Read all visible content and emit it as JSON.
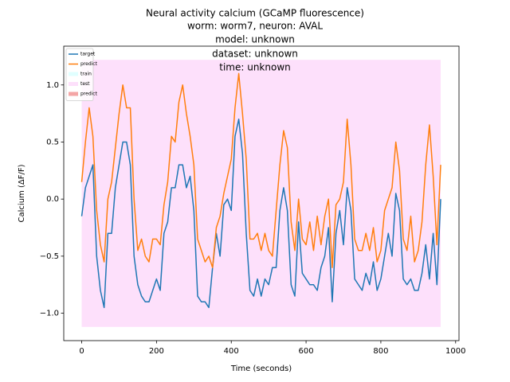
{
  "chart_data": {
    "type": "line",
    "title": [
      "Neural activity calcium (GCaMP fluorescence)",
      "worm: worm7, neuron: AVAL",
      "model: unknown",
      "dataset: unknown",
      "time: unknown"
    ],
    "xlabel": "Time (seconds)",
    "ylabel": "Calcium (ΔF/F)",
    "xlim": [
      -48,
      1009
    ],
    "ylim": [
      -1.24,
      1.34
    ],
    "xticks": [
      0,
      200,
      400,
      600,
      800,
      1000
    ],
    "yticks": [
      {
        "value": -1.0,
        "label": "−1.0"
      },
      {
        "value": -0.5,
        "label": "−0.5"
      },
      {
        "value": 0.0,
        "label": "0.0"
      },
      {
        "value": 0.5,
        "label": "0.5"
      },
      {
        "value": 1.0,
        "label": "1.0"
      }
    ],
    "legend": "upper left",
    "x": [
      0,
      10,
      20,
      30,
      40,
      50,
      60,
      70,
      80,
      90,
      100,
      110,
      120,
      130,
      140,
      150,
      160,
      170,
      180,
      190,
      200,
      210,
      220,
      230,
      240,
      250,
      260,
      270,
      280,
      290,
      300,
      310,
      320,
      330,
      340,
      350,
      360,
      370,
      380,
      390,
      400,
      410,
      420,
      430,
      440,
      450,
      460,
      470,
      480,
      490,
      500,
      510,
      520,
      530,
      540,
      550,
      560,
      570,
      580,
      590,
      600,
      610,
      620,
      630,
      640,
      650,
      660,
      670,
      680,
      690,
      700,
      710,
      720,
      730,
      740,
      750,
      760,
      770,
      780,
      790,
      800,
      810,
      820,
      830,
      840,
      850,
      860,
      870,
      880,
      890,
      900,
      910,
      920,
      930,
      940,
      950,
      960
    ],
    "series": [
      {
        "name": "target",
        "color": "#1f77b4",
        "values": [
          -0.15,
          0.1,
          0.2,
          0.3,
          -0.5,
          -0.8,
          -0.95,
          -0.3,
          -0.3,
          0.1,
          0.3,
          0.5,
          0.5,
          0.3,
          -0.5,
          -0.75,
          -0.85,
          -0.9,
          -0.9,
          -0.8,
          -0.7,
          -0.8,
          -0.3,
          -0.2,
          0.1,
          0.1,
          0.3,
          0.3,
          0.1,
          0.2,
          -0.1,
          -0.85,
          -0.9,
          -0.9,
          -0.95,
          -0.6,
          -0.3,
          -0.5,
          -0.05,
          0.0,
          -0.1,
          0.55,
          0.7,
          0.4,
          -0.3,
          -0.8,
          -0.85,
          -0.7,
          -0.85,
          -0.7,
          -0.75,
          -0.6,
          -0.6,
          -0.1,
          0.1,
          -0.1,
          -0.75,
          -0.85,
          -0.2,
          -0.65,
          -0.7,
          -0.75,
          -0.75,
          -0.8,
          -0.6,
          -0.5,
          -0.25,
          -0.9,
          -0.3,
          -0.1,
          -0.4,
          0.1,
          -0.1,
          -0.7,
          -0.75,
          -0.8,
          -0.65,
          -0.75,
          -0.55,
          -0.8,
          -0.7,
          -0.5,
          -0.3,
          -0.5,
          0.05,
          -0.1,
          -0.7,
          -0.75,
          -0.7,
          -0.8,
          -0.8,
          -0.65,
          -0.4,
          -0.7,
          -0.3,
          -0.75,
          0.0
        ]
      },
      {
        "name": "predict",
        "color": "#ff7f0e",
        "values": [
          0.15,
          0.5,
          0.8,
          0.55,
          -0.1,
          -0.4,
          -0.55,
          0.0,
          0.15,
          0.45,
          0.75,
          1.0,
          0.8,
          0.8,
          0.0,
          -0.45,
          -0.35,
          -0.5,
          -0.55,
          -0.35,
          -0.35,
          -0.4,
          -0.05,
          0.15,
          0.55,
          0.5,
          0.85,
          1.0,
          0.75,
          0.55,
          0.3,
          -0.35,
          -0.45,
          -0.55,
          -0.5,
          -0.6,
          -0.25,
          -0.15,
          0.05,
          0.2,
          0.35,
          0.8,
          1.1,
          0.75,
          0.35,
          -0.35,
          -0.35,
          -0.3,
          -0.45,
          -0.3,
          -0.45,
          -0.5,
          -0.1,
          0.3,
          0.6,
          0.45,
          -0.2,
          -0.45,
          0.0,
          -0.35,
          -0.4,
          -0.2,
          -0.45,
          -0.15,
          -0.4,
          -0.15,
          0.0,
          -0.6,
          -0.05,
          0.0,
          0.15,
          0.7,
          0.3,
          -0.35,
          -0.45,
          -0.45,
          -0.3,
          -0.45,
          -0.25,
          -0.55,
          -0.45,
          -0.1,
          0.0,
          0.1,
          0.5,
          0.25,
          -0.35,
          -0.45,
          -0.15,
          -0.55,
          -0.45,
          -0.2,
          0.3,
          0.65,
          0.2,
          -0.4,
          0.3
        ]
      }
    ],
    "spans": [
      {
        "name": "train",
        "color": "#e0ffff"
      },
      {
        "name": "test",
        "color": "#fde0fb",
        "xlim": [
          0,
          960
        ],
        "ylim": [
          -1.12,
          1.22
        ]
      },
      {
        "name": "predict",
        "color": "#f4a6a6"
      }
    ]
  }
}
